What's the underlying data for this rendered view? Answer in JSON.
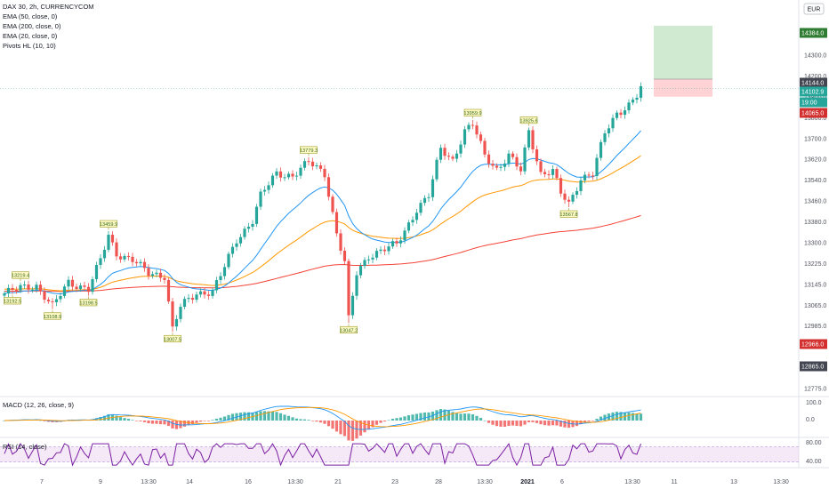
{
  "header": {
    "title": "DAX 30, 2h, CURRENCYCOM",
    "currency": "EUR"
  },
  "indicators": {
    "ema50": "EMA (50, close, 0)",
    "ema200": "EMA (200, close, 0)",
    "ema20": "EMA (20, close, 0)",
    "pivots": "Pivots HL (10, 10)",
    "macd": "MACD (12, 26, close, 9)",
    "rsi": "RSI (14, close)"
  },
  "colors": {
    "up": "#26a69a",
    "down": "#ef5350",
    "ema20": "#2196f3",
    "ema50": "#ff9800",
    "ema200": "#f44336",
    "macd_line": "#2196f3",
    "signal_line": "#ff9800",
    "rsi_line": "#7b1fa2",
    "rsi_band": "#e1bee7",
    "target_zone": "#c8e6c9",
    "stop_zone": "#ffcdd2",
    "pivot_label_bg": "#fff9c4",
    "pivot_label_border": "#9e9d24"
  },
  "chart_data": {
    "type": "candlestick",
    "symbol": "DAX 30",
    "interval": "2h",
    "source": "CURRENCYCOM",
    "ylim": [
      12740,
      14460
    ],
    "price_axis_ticks": [
      "14300.0",
      "14200.0",
      "13900.0",
      "13800.0",
      "13700.0",
      "13620.0",
      "13540.0",
      "13460.0",
      "13380.0",
      "13300.0",
      "13225.0",
      "13145.0",
      "13065.0",
      "12985.0",
      "12915.0",
      "12845.0",
      "12775.0"
    ],
    "price_axis_labels": [
      {
        "text": "14384.0",
        "kind": "target"
      },
      {
        "text": "14144.0",
        "kind": "entry"
      },
      {
        "text": "14102.9",
        "kind": "last"
      },
      {
        "text": "19:00",
        "kind": "countdown"
      },
      {
        "text": "14065.0",
        "kind": "stop"
      },
      {
        "text": "12966.0",
        "kind": "stop"
      },
      {
        "text": "12865.0",
        "kind": "entry"
      }
    ],
    "time_axis_labels": [
      "7",
      "9",
      "13:30",
      "14",
      "16",
      "13:30",
      "21",
      "23",
      "28",
      "13:30",
      "2021",
      "6",
      "13:30",
      "11",
      "13",
      "13:30"
    ],
    "pivots": [
      {
        "text": "13219.4",
        "type": "high",
        "price": 13219,
        "index": 4
      },
      {
        "text": "13459.9",
        "type": "high",
        "price": 13460,
        "index": 26
      },
      {
        "text": "13779.3",
        "type": "high",
        "price": 13779,
        "index": 76
      },
      {
        "text": "13959.9",
        "type": "high",
        "price": 13960,
        "index": 117
      },
      {
        "text": "13925.6",
        "type": "high",
        "price": 13926,
        "index": 131
      },
      {
        "text": "13192.5",
        "type": "low",
        "price": 13193,
        "index": 2
      },
      {
        "text": "13108.9",
        "type": "low",
        "price": 13109,
        "index": 12
      },
      {
        "text": "13198.5",
        "type": "low",
        "price": 13198,
        "index": 21
      },
      {
        "text": "13007.5",
        "type": "low",
        "price": 13007,
        "index": 42
      },
      {
        "text": "13047.2",
        "type": "low",
        "price": 13047,
        "index": 86
      },
      {
        "text": "13567.8",
        "type": "low",
        "price": 13568,
        "index": 141
      }
    ],
    "anchors": [
      [
        0,
        13180
      ],
      [
        2,
        13192
      ],
      [
        4,
        13205
      ],
      [
        8,
        13215
      ],
      [
        12,
        13120
      ],
      [
        16,
        13230
      ],
      [
        21,
        13200
      ],
      [
        24,
        13330
      ],
      [
        26,
        13440
      ],
      [
        28,
        13360
      ],
      [
        32,
        13330
      ],
      [
        36,
        13270
      ],
      [
        40,
        13260
      ],
      [
        42,
        13020
      ],
      [
        44,
        13120
      ],
      [
        48,
        13180
      ],
      [
        52,
        13190
      ],
      [
        54,
        13260
      ],
      [
        58,
        13420
      ],
      [
        62,
        13510
      ],
      [
        64,
        13620
      ],
      [
        68,
        13720
      ],
      [
        72,
        13710
      ],
      [
        76,
        13770
      ],
      [
        80,
        13720
      ],
      [
        83,
        13450
      ],
      [
        85,
        13320
      ],
      [
        86,
        13060
      ],
      [
        88,
        13270
      ],
      [
        91,
        13350
      ],
      [
        95,
        13380
      ],
      [
        98,
        13400
      ],
      [
        100,
        13460
      ],
      [
        103,
        13560
      ],
      [
        106,
        13620
      ],
      [
        109,
        13830
      ],
      [
        112,
        13780
      ],
      [
        115,
        13910
      ],
      [
        117,
        13940
      ],
      [
        120,
        13800
      ],
      [
        123,
        13740
      ],
      [
        126,
        13800
      ],
      [
        129,
        13730
      ],
      [
        131,
        13910
      ],
      [
        134,
        13720
      ],
      [
        137,
        13730
      ],
      [
        139,
        13630
      ],
      [
        141,
        13580
      ],
      [
        144,
        13700
      ],
      [
        147,
        13720
      ],
      [
        150,
        13900
      ],
      [
        153,
        13990
      ],
      [
        156,
        14030
      ],
      [
        158,
        14070
      ],
      [
        159,
        14103
      ]
    ],
    "series": [
      {
        "name": "EMA (20, close, 0)",
        "ref": "ema20"
      },
      {
        "name": "EMA (50, close, 0)",
        "ref": "ema50"
      },
      {
        "name": "EMA (200, close, 0)",
        "ref": "ema200"
      }
    ],
    "position_tool": {
      "entry": 14144,
      "target": 14384,
      "stop": 14065
    },
    "macd_axis_ticks": [
      "100.0",
      "0.0"
    ],
    "rsi_axis_ticks": [
      "80.00",
      "40.00"
    ]
  }
}
